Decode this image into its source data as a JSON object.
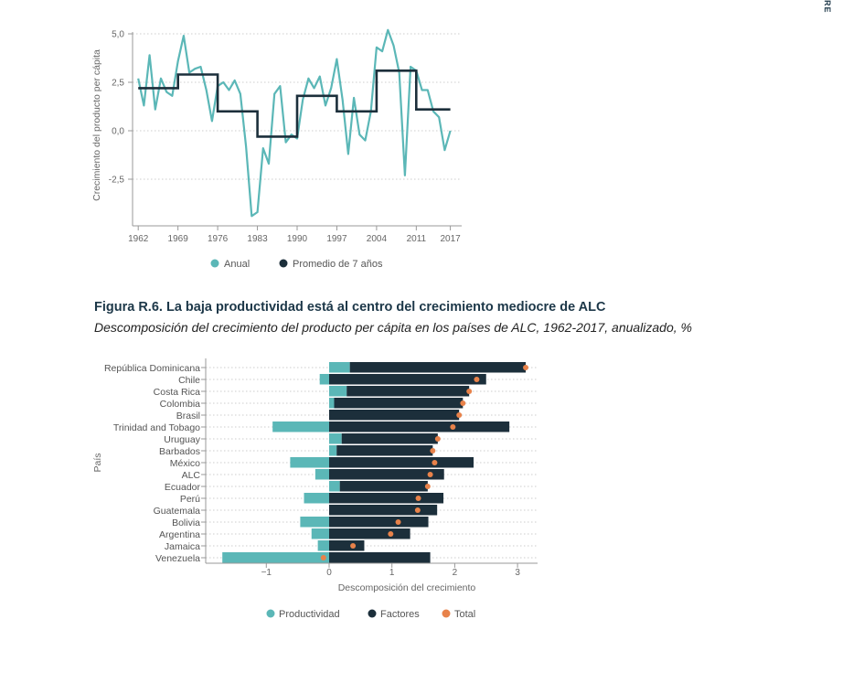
{
  "side_mark": "RE",
  "figure": {
    "title": "Figura R.6. La baja productividad está al centro del crecimiento mediocre de ALC",
    "subtitle": "Descomposición del crecimiento del producto per cápita en los países de ALC, 1962-2017, anualizado, %"
  },
  "colors": {
    "anual": "#5bb7b7",
    "promedio": "#1c2f3b",
    "productividad": "#5bb7b7",
    "factores": "#1c2f3b",
    "total": "#e8824a",
    "grid": "#cccccc",
    "axis": "#999999"
  },
  "chart_data": [
    {
      "type": "line",
      "title": "",
      "xlabel": "",
      "ylabel": "Crecimiento del producto per cápita",
      "xticks": [
        "1962",
        "1969",
        "1976",
        "1983",
        "1990",
        "1997",
        "2004",
        "2011",
        "2017"
      ],
      "yticks": [
        "5,0",
        "2,5",
        "0,0",
        "-2,5"
      ],
      "xlim": [
        1961,
        2019
      ],
      "ylim": [
        -4.8,
        5.5
      ],
      "legend_position": "bottom",
      "x": [
        1962,
        1963,
        1964,
        1965,
        1966,
        1967,
        1968,
        1969,
        1970,
        1971,
        1972,
        1973,
        1974,
        1975,
        1976,
        1977,
        1978,
        1979,
        1980,
        1981,
        1982,
        1983,
        1984,
        1985,
        1986,
        1987,
        1988,
        1989,
        1990,
        1991,
        1992,
        1993,
        1994,
        1995,
        1996,
        1997,
        1998,
        1999,
        2000,
        2001,
        2002,
        2003,
        2004,
        2005,
        2006,
        2007,
        2008,
        2009,
        2010,
        2011,
        2012,
        2013,
        2014,
        2015,
        2016,
        2017
      ],
      "series": [
        {
          "name": "Anual",
          "values": [
            2.7,
            1.3,
            3.9,
            1.1,
            2.7,
            2.0,
            1.8,
            3.6,
            4.9,
            3.0,
            3.2,
            3.3,
            2.1,
            0.5,
            2.3,
            2.5,
            2.1,
            2.6,
            1.9,
            -0.8,
            -4.4,
            -4.2,
            -0.9,
            -1.7,
            1.9,
            2.3,
            -0.6,
            -0.2,
            -0.4,
            1.6,
            2.7,
            2.2,
            2.8,
            1.3,
            2.2,
            3.7,
            1.6,
            -1.2,
            1.7,
            -0.2,
            -0.5,
            1.0,
            4.3,
            4.1,
            5.2,
            4.4,
            3.0,
            -2.3,
            3.3,
            3.1,
            2.1,
            2.1,
            1.0,
            0.7,
            -1.0,
            0.0
          ]
        },
        {
          "name": "Promedio de 7 años",
          "values": [
            2.2,
            2.2,
            2.2,
            2.2,
            2.2,
            2.2,
            2.2,
            2.9,
            2.9,
            2.9,
            2.9,
            2.9,
            2.9,
            2.9,
            1.0,
            1.0,
            1.0,
            1.0,
            1.0,
            1.0,
            1.0,
            -0.3,
            -0.3,
            -0.3,
            -0.3,
            -0.3,
            -0.3,
            -0.3,
            1.8,
            1.8,
            1.8,
            1.8,
            1.8,
            1.8,
            1.8,
            1.0,
            1.0,
            1.0,
            1.0,
            1.0,
            1.0,
            1.0,
            3.1,
            3.1,
            3.1,
            3.1,
            3.1,
            3.1,
            3.1,
            1.1,
            1.1,
            1.1,
            1.1,
            1.1,
            1.1,
            1.1
          ]
        }
      ]
    },
    {
      "type": "bar",
      "orientation": "horizontal",
      "stacked": true,
      "title": "",
      "xlabel": "Descomposición del crecimiento",
      "ylabel": "País",
      "xticks": [
        "−1",
        "0",
        "1",
        "2",
        "3"
      ],
      "xlim": [
        -1.8,
        3.3
      ],
      "legend_position": "bottom",
      "categories": [
        "República Dominicana",
        "Chile",
        "Costa Rica",
        "Colombia",
        "Brasil",
        "Trinidad and Tobago",
        "Uruguay",
        "Barbados",
        "México",
        "ALC",
        "Ecuador",
        "Perú",
        "Guatemala",
        "Bolivia",
        "Argentina",
        "Jamaica",
        "Venezuela"
      ],
      "series": [
        {
          "name": "Productividad",
          "values": [
            0.33,
            -0.15,
            0.28,
            0.08,
            0.0,
            -0.9,
            0.2,
            0.12,
            -0.62,
            -0.22,
            0.17,
            -0.4,
            0.0,
            -0.46,
            -0.28,
            -0.18,
            -1.7
          ]
        },
        {
          "name": "Factores",
          "values": [
            2.8,
            2.5,
            1.95,
            2.05,
            2.07,
            2.87,
            1.53,
            1.53,
            2.3,
            1.83,
            1.4,
            1.82,
            1.72,
            1.58,
            1.29,
            0.56,
            1.61
          ]
        },
        {
          "name": "Total",
          "values": [
            3.13,
            2.35,
            2.23,
            2.13,
            2.07,
            1.97,
            1.73,
            1.65,
            1.68,
            1.61,
            1.57,
            1.42,
            1.41,
            1.1,
            0.98,
            0.38,
            -0.09
          ]
        }
      ]
    }
  ]
}
